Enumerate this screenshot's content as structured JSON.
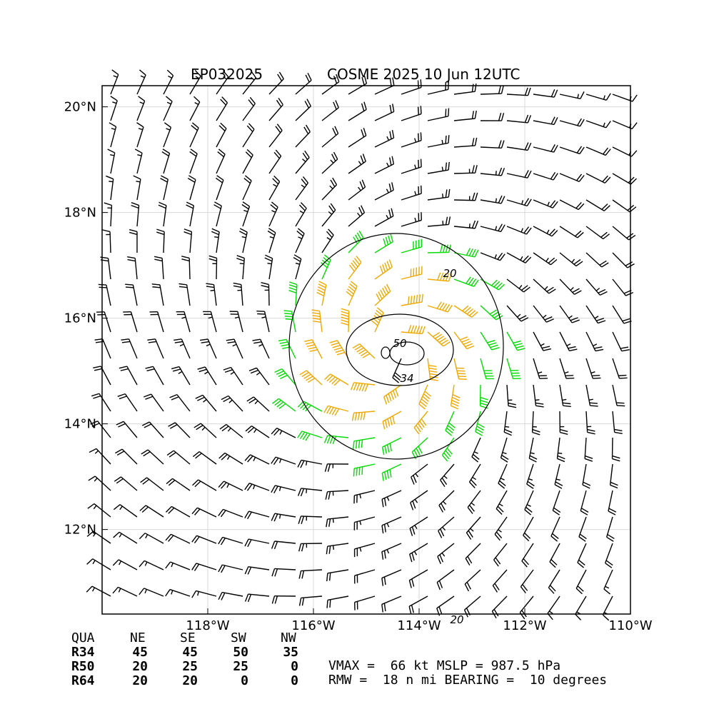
{
  "header": {
    "storm_id": "EP032025",
    "storm_label": "COSME 2025 10 Jun 12UTC"
  },
  "chart_data": {
    "type": "wind-barb-map",
    "x_ticks": [
      "118°W",
      "116°W",
      "114°W",
      "112°W",
      "110°W"
    ],
    "x_tick_values": [
      -118,
      -116,
      -114,
      -112,
      -110
    ],
    "y_ticks": [
      "20°N",
      "18°N",
      "16°N",
      "14°N",
      "12°N"
    ],
    "y_tick_values": [
      20,
      18,
      16,
      14,
      12
    ],
    "lon_range": [
      -120.0,
      -110.0
    ],
    "lat_range": [
      10.4,
      20.4
    ],
    "grid": true,
    "center": {
      "lon": -114.5,
      "lat": 15.4
    },
    "contour_labels": [
      "20",
      "50",
      "34",
      "20"
    ],
    "barb_colors": {
      "calm": "#000000",
      "gale": "#00dd00",
      "storm": "#f0a800",
      "hurricane": "#ff2200",
      "contour": "#000000"
    },
    "wind_radii_colors": {
      "r34": "#00dd00",
      "r50": "#f0a800"
    }
  },
  "quadrant_table": {
    "columns": [
      "QUA",
      "NE",
      "SE",
      "SW",
      "NW"
    ],
    "rows": [
      {
        "label": "R34",
        "values": [
          "45",
          "45",
          "50",
          "35"
        ]
      },
      {
        "label": "R50",
        "values": [
          "20",
          "25",
          "25",
          "0"
        ]
      },
      {
        "label": "R64",
        "values": [
          "20",
          "20",
          "0",
          "0"
        ]
      }
    ]
  },
  "summary": {
    "line1": "VMAX =  66 kt MSLP = 987.5 hPa",
    "line2": "RMW =  18 n mi BEARING =  10 degrees"
  }
}
